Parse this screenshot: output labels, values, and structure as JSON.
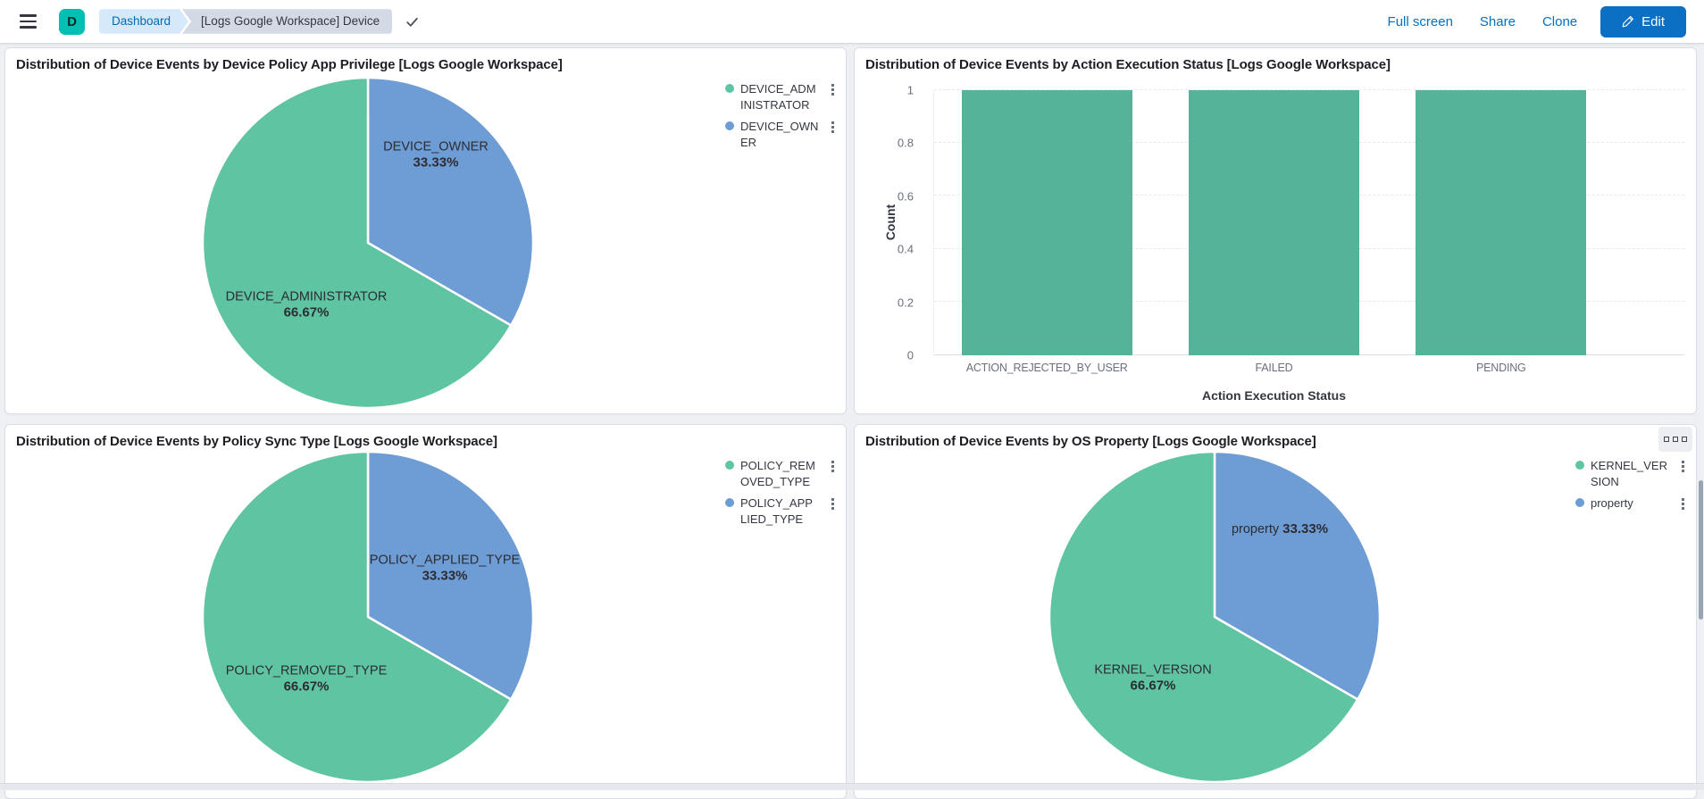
{
  "header": {
    "avatar_initial": "D",
    "breadcrumbs": [
      {
        "label": "Dashboard"
      },
      {
        "label": "[Logs Google Workspace] Device"
      }
    ],
    "saved_indicator": "check",
    "actions": {
      "full_screen": "Full screen",
      "share": "Share",
      "clone": "Clone",
      "edit": "Edit"
    },
    "colors": {
      "accent_blue": "#0071c2",
      "badge_teal": "#00bfb3"
    }
  },
  "panels": [
    {
      "title": "Distribution of Device Events by Device Policy App Privilege [Logs Google Workspace]",
      "chart_data": {
        "type": "pie",
        "slices": [
          {
            "label": "DEVICE_OWNER",
            "value": 33.33,
            "display": "33.33%",
            "color": "#6e9cd4"
          },
          {
            "label": "DEVICE_ADMINISTRATOR",
            "value": 66.67,
            "display": "66.67%",
            "color": "#5fc4a1"
          }
        ],
        "legend_position": "top-right"
      },
      "legend": [
        {
          "label": "DEVICE_ADMINISTRATOR",
          "color": "#5fc4a1"
        },
        {
          "label": "DEVICE_OWNER",
          "color": "#6e9cd4"
        }
      ]
    },
    {
      "title": "Distribution of Device Events by Action Execution Status [Logs Google Workspace]",
      "chart_data": {
        "type": "bar",
        "categories": [
          "ACTION_REJECTED_BY_USER",
          "FAILED",
          "PENDING"
        ],
        "values": [
          1,
          1,
          1
        ],
        "xlabel": "Action Execution Status",
        "ylabel": "Count",
        "ylim": [
          0,
          1
        ],
        "yticks": [
          0,
          0.2,
          0.4,
          0.6,
          0.8,
          1
        ],
        "grid": "horizontal-dashed",
        "color": "#54b399",
        "legend": "hidden"
      }
    },
    {
      "title": "Distribution of Device Events by Policy Sync Type [Logs Google Workspace]",
      "chart_data": {
        "type": "pie",
        "slices": [
          {
            "label": "POLICY_APPLIED_TYPE",
            "value": 33.33,
            "display": "33.33%",
            "color": "#6e9cd4"
          },
          {
            "label": "POLICY_REMOVED_TYPE",
            "value": 66.67,
            "display": "66.67%",
            "color": "#5fc4a1"
          }
        ],
        "legend_position": "top-right"
      },
      "legend": [
        {
          "label": "POLICY_REMOVED_TYPE",
          "color": "#5fc4a1"
        },
        {
          "label": "POLICY_APPLIED_TYPE",
          "color": "#6e9cd4"
        }
      ]
    },
    {
      "title": "Distribution of Device Events by OS Property [Logs Google Workspace]",
      "chart_data": {
        "type": "pie",
        "slices": [
          {
            "label": "property",
            "value": 33.33,
            "display": "33.33%",
            "color": "#6e9cd4"
          },
          {
            "label": "KERNEL_VERSION",
            "value": 66.67,
            "display": "66.67%",
            "color": "#5fc4a1"
          }
        ],
        "legend_position": "top-right"
      },
      "legend": [
        {
          "label": "KERNEL_VERSION",
          "color": "#5fc4a1"
        },
        {
          "label": "property",
          "color": "#6e9cd4"
        }
      ]
    }
  ]
}
